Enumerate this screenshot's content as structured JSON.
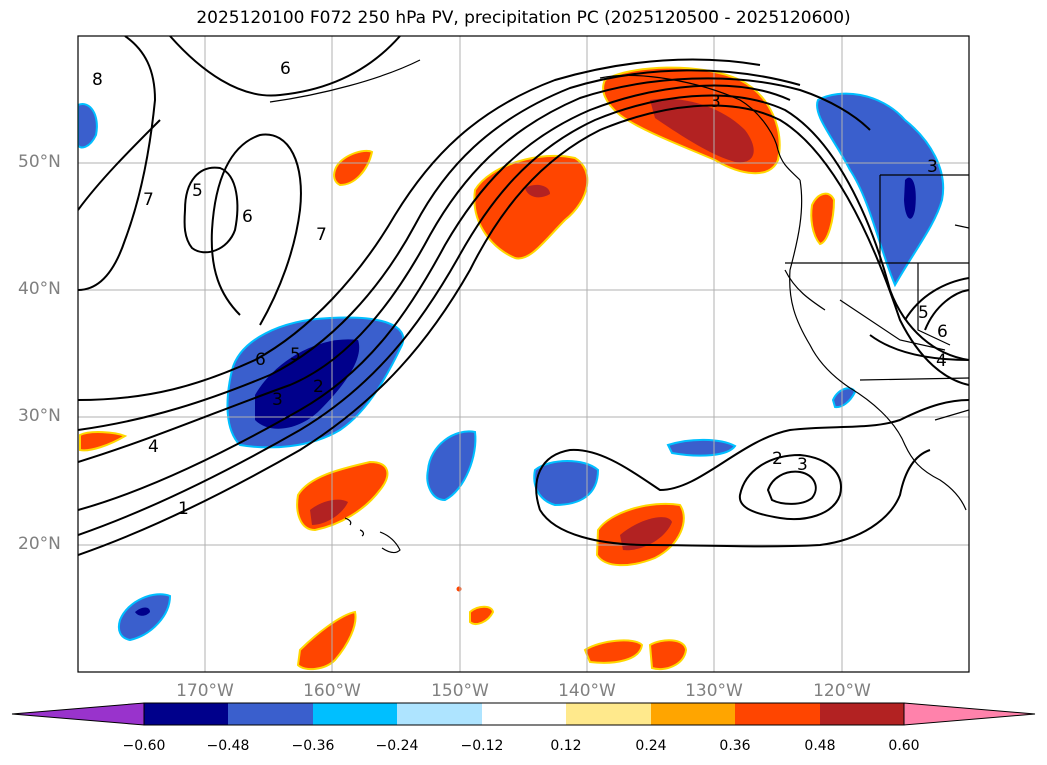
{
  "title": "2025120100 F072 250 hPa PV, precipitation PC (2025120500 - 2025120600)",
  "map": {
    "lat_labels": [
      "50°N",
      "40°N",
      "30°N",
      "20°N"
    ],
    "lon_labels": [
      "170°W",
      "160°W",
      "150°W",
      "140°W",
      "130°W",
      "120°W"
    ],
    "extent": {
      "lon_min": -180,
      "lon_max": -110,
      "lat_min": 10,
      "lat_max": 60
    },
    "gridlines": true,
    "pv_contour_labels": [
      "8",
      "6",
      "7",
      "5",
      "6",
      "7",
      "6",
      "5",
      "2",
      "3",
      "4",
      "1",
      "2",
      "3",
      "5",
      "6",
      "4",
      "3",
      "3"
    ],
    "fill_colors": {
      "strong_negative": "#00008b",
      "negative": "#3a5fcd",
      "weak_negative": "#00bfff",
      "weak_positive": "#ffd700",
      "positive": "#ff4500",
      "strong_positive": "#b22222"
    }
  },
  "colorbar": {
    "ticks": [
      "−0.60",
      "−0.48",
      "−0.36",
      "−0.24",
      "−0.12",
      "0.12",
      "0.24",
      "0.36",
      "0.48",
      "0.60"
    ],
    "colors": [
      "#9933cc",
      "#00008b",
      "#3a5fcd",
      "#00bfff",
      "#aee4ff",
      "#ffffff",
      "#ffe98c",
      "#ffa500",
      "#ff4500",
      "#b22222",
      "#ff82ab"
    ],
    "extend": "both"
  }
}
